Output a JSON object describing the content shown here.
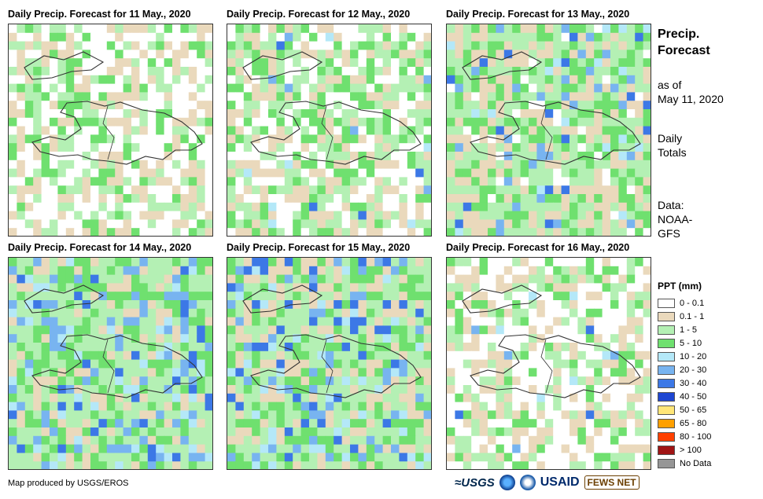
{
  "panels": [
    {
      "title": "Daily Precip. Forecast for 11 May., 2020",
      "seed": 11,
      "wet": 0.35,
      "heavy": 0.0
    },
    {
      "title": "Daily Precip. Forecast for 12 May., 2020",
      "seed": 12,
      "wet": 0.45,
      "heavy": 0.03
    },
    {
      "title": "Daily Precip. Forecast for 13 May., 2020",
      "seed": 13,
      "wet": 0.6,
      "heavy": 0.1
    },
    {
      "title": "Daily Precip. Forecast for 14 May., 2020",
      "seed": 14,
      "wet": 0.65,
      "heavy": 0.22
    },
    {
      "title": "Daily Precip. Forecast for 15 May., 2020",
      "seed": 15,
      "wet": 0.55,
      "heavy": 0.2
    },
    {
      "title": "Daily Precip. Forecast for 16 May., 2020",
      "seed": 16,
      "wet": 0.3,
      "heavy": 0.02
    }
  ],
  "side": {
    "title_line1": "Precip.",
    "title_line2": "Forecast",
    "asof_line1": "as of",
    "asof_line2": "May 11, 2020",
    "daily_line1": "Daily",
    "daily_line2": "Totals",
    "data_line1": "Data:",
    "data_line2": "NOAA-",
    "data_line3": "GFS"
  },
  "legend": {
    "title": "PPT (mm)",
    "items": [
      {
        "label": "0 - 0.1",
        "color": "#ffffff"
      },
      {
        "label": "0.1 - 1",
        "color": "#ead9bc"
      },
      {
        "label": "1 - 5",
        "color": "#b4f0b4"
      },
      {
        "label": "5 - 10",
        "color": "#6fe06f"
      },
      {
        "label": "10 - 20",
        "color": "#b4e8f8"
      },
      {
        "label": "20 - 30",
        "color": "#78b4f0"
      },
      {
        "label": "30 - 40",
        "color": "#3c78e6"
      },
      {
        "label": "40 - 50",
        "color": "#1e46d2"
      },
      {
        "label": "50 - 65",
        "color": "#ffe678"
      },
      {
        "label": "65 - 80",
        "color": "#ffa000"
      },
      {
        "label": "80 - 100",
        "color": "#ff4000"
      },
      {
        "label": "> 100",
        "color": "#a01414"
      },
      {
        "label": "No Data",
        "color": "#969696"
      }
    ]
  },
  "credit": "Map produced by USGS/EROS",
  "logos": {
    "usgs": "≈USGS",
    "usaid": "USAID",
    "fews": "FEWS NET"
  }
}
